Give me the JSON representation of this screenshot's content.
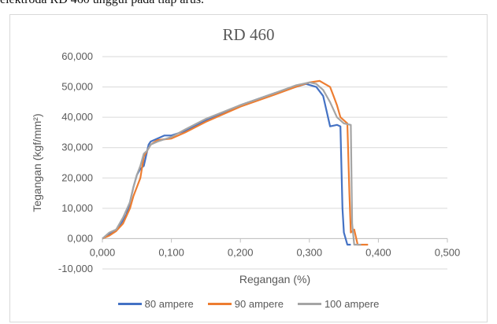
{
  "caption_fragment": "elektroda RD 460 unggul pada tiap arus.",
  "chart_data": {
    "type": "line",
    "title": "RD 460",
    "xlabel": "Regangan (%)",
    "ylabel": "Tegangan (kgf/mm²)",
    "xlim": [
      0,
      0.5
    ],
    "ylim": [
      -10000,
      60000
    ],
    "x_ticks": [
      0,
      0.1,
      0.2,
      0.3,
      0.4,
      0.5
    ],
    "x_tick_labels": [
      "0,000",
      "0,100",
      "0,200",
      "0,300",
      "0,400",
      "0,500"
    ],
    "y_ticks": [
      -10000,
      0,
      10000,
      20000,
      30000,
      40000,
      50000,
      60000
    ],
    "y_tick_labels": [
      "-10,000",
      "0,000",
      "10,000",
      "20,000",
      "30,000",
      "40,000",
      "50,000",
      "60,000"
    ],
    "grid": "horizontal",
    "legend_position": "bottom",
    "series": [
      {
        "name": "80 ampere",
        "color": "#4472c4",
        "points": [
          [
            0,
            0
          ],
          [
            0.01,
            1500
          ],
          [
            0.02,
            3000
          ],
          [
            0.03,
            6000
          ],
          [
            0.035,
            8000
          ],
          [
            0.04,
            12000
          ],
          [
            0.045,
            17000
          ],
          [
            0.05,
            21000
          ],
          [
            0.055,
            23000
          ],
          [
            0.06,
            24000
          ],
          [
            0.065,
            29000
          ],
          [
            0.067,
            31000
          ],
          [
            0.07,
            32000
          ],
          [
            0.08,
            33000
          ],
          [
            0.09,
            34000
          ],
          [
            0.1,
            34000
          ],
          [
            0.12,
            35500
          ],
          [
            0.15,
            39000
          ],
          [
            0.2,
            44000
          ],
          [
            0.25,
            48000
          ],
          [
            0.28,
            50000
          ],
          [
            0.295,
            51000
          ],
          [
            0.31,
            50000
          ],
          [
            0.32,
            47000
          ],
          [
            0.325,
            42000
          ],
          [
            0.33,
            37000
          ],
          [
            0.34,
            37500
          ],
          [
            0.345,
            37000
          ],
          [
            0.348,
            10000
          ],
          [
            0.35,
            2000
          ],
          [
            0.355,
            -2000
          ],
          [
            0.36,
            -2000
          ]
        ]
      },
      {
        "name": "90 ampere",
        "color": "#ed7d31",
        "points": [
          [
            0,
            0
          ],
          [
            0.01,
            1000
          ],
          [
            0.02,
            2500
          ],
          [
            0.03,
            5000
          ],
          [
            0.04,
            10000
          ],
          [
            0.045,
            14000
          ],
          [
            0.05,
            17000
          ],
          [
            0.055,
            20000
          ],
          [
            0.06,
            27000
          ],
          [
            0.065,
            29000
          ],
          [
            0.07,
            31000
          ],
          [
            0.08,
            32500
          ],
          [
            0.1,
            33000
          ],
          [
            0.12,
            35000
          ],
          [
            0.15,
            38500
          ],
          [
            0.2,
            43500
          ],
          [
            0.25,
            47500
          ],
          [
            0.28,
            50000
          ],
          [
            0.3,
            51500
          ],
          [
            0.315,
            52000
          ],
          [
            0.33,
            50000
          ],
          [
            0.335,
            47000
          ],
          [
            0.34,
            44000
          ],
          [
            0.345,
            40000
          ],
          [
            0.355,
            38000
          ],
          [
            0.358,
            15000
          ],
          [
            0.36,
            2000
          ],
          [
            0.365,
            3000
          ],
          [
            0.37,
            -2000
          ],
          [
            0.385,
            -2000
          ]
        ]
      },
      {
        "name": "100 ampere",
        "color": "#a5a5a5",
        "points": [
          [
            0,
            0
          ],
          [
            0.01,
            2000
          ],
          [
            0.02,
            3000
          ],
          [
            0.03,
            7000
          ],
          [
            0.04,
            12000
          ],
          [
            0.045,
            17000
          ],
          [
            0.05,
            21000
          ],
          [
            0.055,
            24000
          ],
          [
            0.06,
            28000
          ],
          [
            0.065,
            29000
          ],
          [
            0.07,
            31000
          ],
          [
            0.08,
            32000
          ],
          [
            0.1,
            33500
          ],
          [
            0.12,
            36000
          ],
          [
            0.15,
            39500
          ],
          [
            0.2,
            44000
          ],
          [
            0.25,
            48000
          ],
          [
            0.28,
            50500
          ],
          [
            0.3,
            51500
          ],
          [
            0.31,
            51000
          ],
          [
            0.32,
            49000
          ],
          [
            0.33,
            45000
          ],
          [
            0.34,
            40000
          ],
          [
            0.35,
            38000
          ],
          [
            0.36,
            37500
          ],
          [
            0.362,
            5000
          ],
          [
            0.365,
            -2000
          ],
          [
            0.375,
            -2000
          ]
        ]
      }
    ]
  }
}
